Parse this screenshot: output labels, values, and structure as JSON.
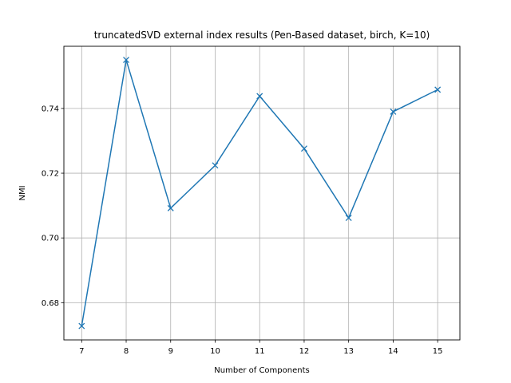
{
  "chart_data": {
    "type": "line",
    "title": "truncatedSVD external index results (Pen-Based dataset, birch, K=10)",
    "xlabel": "Number of Components",
    "ylabel": "NMI",
    "x": [
      7,
      8,
      9,
      10,
      11,
      12,
      13,
      14,
      15
    ],
    "series": [
      {
        "values": [
          0.6728,
          0.755,
          0.7092,
          0.7224,
          0.7438,
          0.7276,
          0.7062,
          0.739,
          0.7458
        ]
      }
    ],
    "x_ticks": [
      "7",
      "8",
      "9",
      "10",
      "11",
      "12",
      "13",
      "14",
      "15"
    ],
    "y_ticks": [
      "0.68",
      "0.70",
      "0.72",
      "0.74"
    ],
    "xlim": [
      6.6,
      15.5
    ],
    "ylim": [
      0.6685,
      0.7592
    ],
    "grid": true,
    "marker": "x",
    "colors": {
      "line": "#1f77b4",
      "grid": "#b0b0b0",
      "axes": "#000000"
    }
  }
}
